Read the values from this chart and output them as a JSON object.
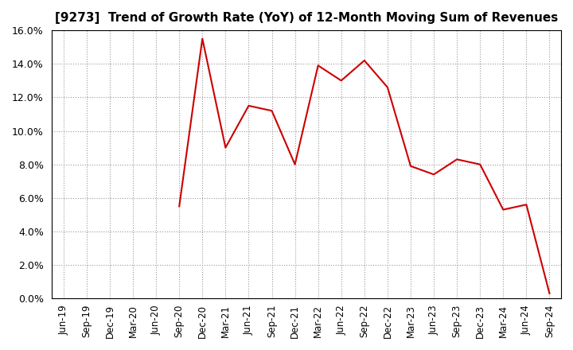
{
  "title": "[9273]  Trend of Growth Rate (YoY) of 12-Month Moving Sum of Revenues",
  "line_color": "#CC0000",
  "background_color": "#FFFFFF",
  "plot_bg_color": "#FFFFFF",
  "grid_color": "#999999",
  "ylim": [
    0.0,
    0.16
  ],
  "yticks": [
    0.0,
    0.02,
    0.04,
    0.06,
    0.08,
    0.1,
    0.12,
    0.14,
    0.16
  ],
  "values": [
    null,
    null,
    null,
    null,
    null,
    0.055,
    0.155,
    0.09,
    0.115,
    0.112,
    0.08,
    0.139,
    0.13,
    0.142,
    0.126,
    0.079,
    0.074,
    0.083,
    0.08,
    0.053,
    0.056,
    0.003
  ],
  "tick_labels": [
    "Jun-19",
    "Sep-19",
    "Dec-19",
    "Mar-20",
    "Jun-20",
    "Sep-20",
    "Dec-20",
    "Mar-21",
    "Jun-21",
    "Sep-21",
    "Dec-21",
    "Mar-22",
    "Jun-22",
    "Sep-22",
    "Dec-22",
    "Mar-23",
    "Jun-23",
    "Sep-23",
    "Dec-23",
    "Mar-24",
    "Jun-24",
    "Sep-24"
  ],
  "title_fontsize": 11,
  "tick_fontsize": 8.5,
  "ytick_fontsize": 9
}
